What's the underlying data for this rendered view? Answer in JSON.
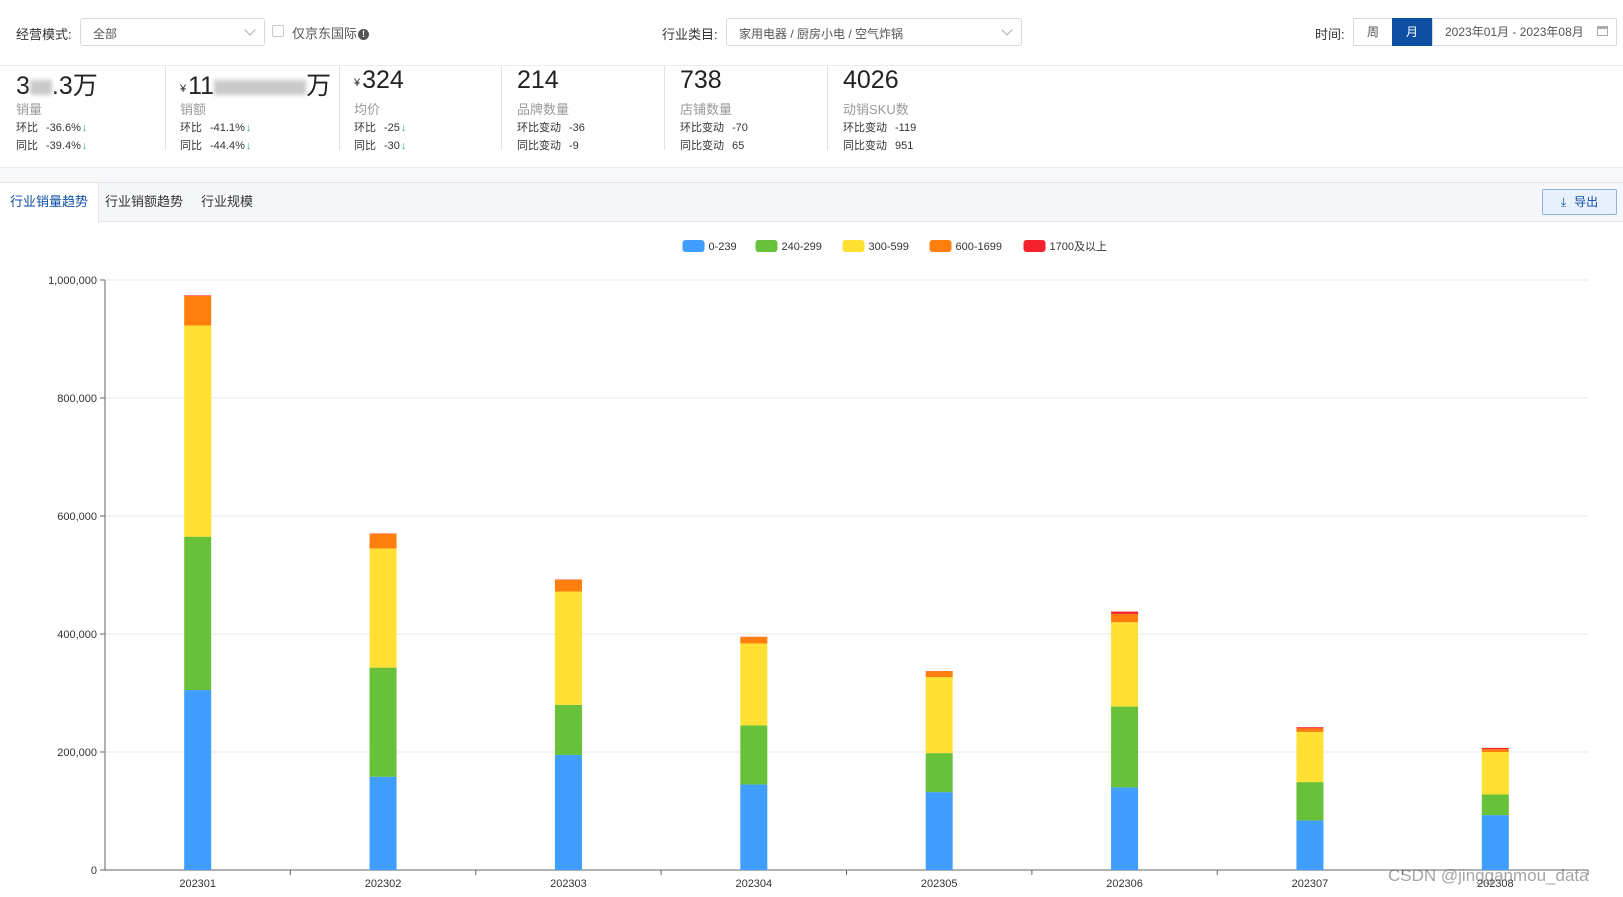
{
  "filters": {
    "mode_label": "经营模式:",
    "mode_value": "全部",
    "intl_only_label": "仅京东国际",
    "category_label": "行业类目:",
    "category_value": "家用电器 / 厨房小电 / 空气炸锅",
    "time_label": "时间:",
    "time_week": "周",
    "time_month": "月",
    "time_range": "2023年01月 - 2023年08月"
  },
  "kpis": [
    {
      "value": "3",
      "value_suffix": ".3万",
      "currency": "",
      "name": "销量",
      "cmp1_label": "环比",
      "cmp1_value": "-36.6%",
      "cmp2_label": "同比",
      "cmp2_value": "-39.4%",
      "arrow": "↓"
    },
    {
      "value": "11",
      "value_suffix": "万",
      "currency": "¥",
      "name": "销额",
      "cmp1_label": "环比",
      "cmp1_value": "-41.1%",
      "cmp2_label": "同比",
      "cmp2_value": "-44.4%",
      "arrow": "↓"
    },
    {
      "value": "324",
      "value_suffix": "",
      "currency": "¥",
      "name": "均价",
      "cmp1_label": "环比",
      "cmp1_value": "-25",
      "cmp2_label": "同比",
      "cmp2_value": "-30",
      "arrow": "↓"
    },
    {
      "value": "214",
      "name": "品牌数量",
      "cmp1_label": "环比变动",
      "cmp1_value": "-36",
      "cmp2_label": "同比变动",
      "cmp2_value": "-9"
    },
    {
      "value": "738",
      "name": "店铺数量",
      "cmp1_label": "环比变动",
      "cmp1_value": "-70",
      "cmp2_label": "同比变动",
      "cmp2_value": "65"
    },
    {
      "value": "4026",
      "name": "动销SKU数",
      "cmp1_label": "环比变动",
      "cmp1_value": "-119",
      "cmp2_label": "同比变动",
      "cmp2_value": "951"
    }
  ],
  "tabs": [
    "行业销量趋势",
    "行业销额趋势",
    "行业规模"
  ],
  "export_label": "导出",
  "icons": {
    "export": "download-icon",
    "calendar": "calendar-icon",
    "info": "info-icon",
    "dropdown": "chevron-down-icon"
  },
  "colors": {
    "primary": "#0d4fa3",
    "down": "#2bb673"
  },
  "chart_data": {
    "type": "bar",
    "stacked": true,
    "categories": [
      "202301",
      "202302",
      "202303",
      "202304",
      "202305",
      "202306",
      "202307",
      "202308"
    ],
    "ylim": [
      0,
      1000000
    ],
    "yticks": [
      0,
      200000,
      400000,
      600000,
      800000,
      1000000
    ],
    "ytick_labels": [
      "0",
      "200,000",
      "400,000",
      "600,000",
      "800,000",
      "1,000,000"
    ],
    "grid": true,
    "legend_position": "top-center",
    "series": [
      {
        "name": "0-239",
        "color": "#409eff",
        "values": [
          305000,
          158000,
          195000,
          145000,
          132000,
          140000,
          84000,
          93000
        ]
      },
      {
        "name": "240-299",
        "color": "#67c23a",
        "values": [
          260000,
          185000,
          85000,
          100000,
          66000,
          137000,
          65000,
          35000
        ]
      },
      {
        "name": "300-599",
        "color": "#ffe033",
        "values": [
          358000,
          202000,
          192000,
          139000,
          129000,
          143000,
          85000,
          72000
        ]
      },
      {
        "name": "600-1699",
        "color": "#ff7f0e",
        "values": [
          50000,
          25000,
          20000,
          11000,
          10000,
          14000,
          6000,
          5000
        ]
      },
      {
        "name": "1700及以上",
        "color": "#f5222d",
        "values": [
          1000,
          500,
          500,
          300,
          300,
          4000,
          2000,
          2000
        ]
      }
    ]
  },
  "watermark": "CSDN @jingganmou_data"
}
